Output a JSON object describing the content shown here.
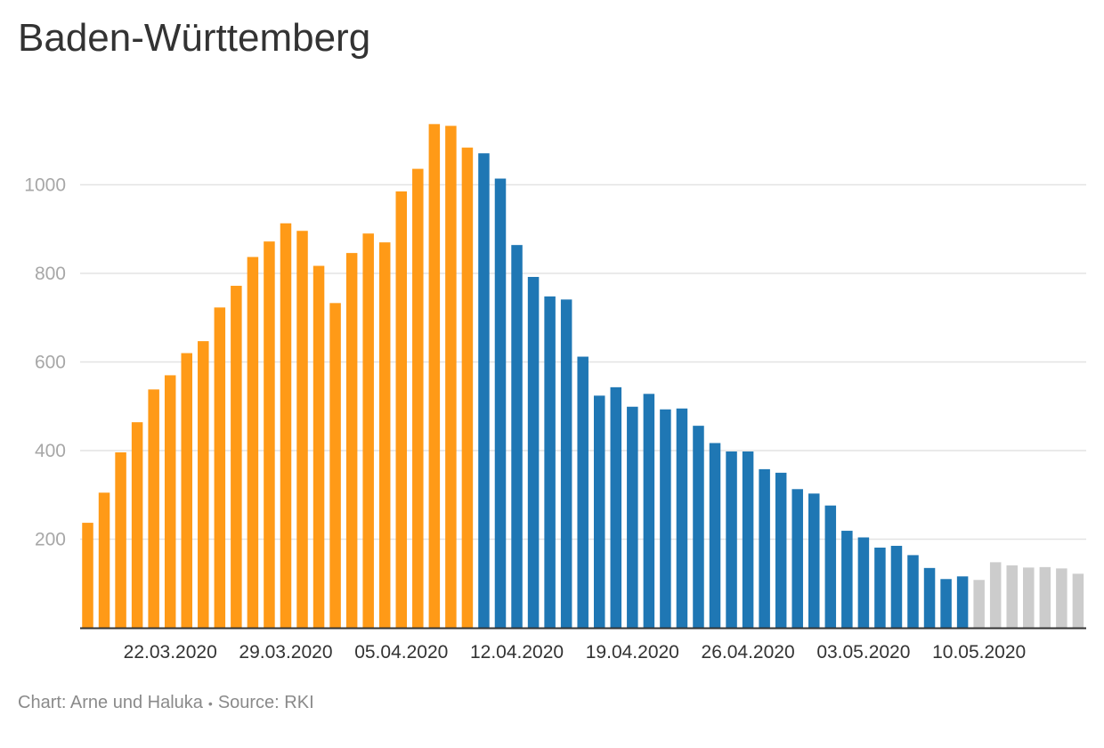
{
  "chart_data": {
    "type": "bar",
    "title": "Baden-Württemberg",
    "ylim": [
      0,
      1150
    ],
    "grid": true,
    "yticks": [
      200,
      400,
      600,
      800,
      1000
    ],
    "xtick_labels": [
      {
        "index": 5,
        "label": "22.03.2020"
      },
      {
        "index": 12,
        "label": "29.03.2020"
      },
      {
        "index": 19,
        "label": "05.04.2020"
      },
      {
        "index": 26,
        "label": "12.04.2020"
      },
      {
        "index": 33,
        "label": "19.04.2020"
      },
      {
        "index": 40,
        "label": "26.04.2020"
      },
      {
        "index": 47,
        "label": "03.05.2020"
      },
      {
        "index": 54,
        "label": "10.05.2020"
      }
    ],
    "series": [
      {
        "color": "#ff9a17",
        "start_index": 0,
        "values": [
          237,
          305,
          396,
          464,
          538,
          570,
          620,
          647,
          723,
          772,
          837,
          872,
          913,
          896,
          817,
          733,
          846,
          890,
          870,
          985,
          1036,
          1137,
          1133,
          1084
        ]
      },
      {
        "color": "#1f77b4",
        "start_index": 24,
        "values": [
          1071,
          1014,
          864,
          792,
          748,
          741,
          612,
          524,
          543,
          499,
          528,
          493,
          495,
          456,
          417,
          398,
          398,
          358,
          350,
          313,
          303,
          276,
          219,
          204,
          181,
          185,
          164,
          135,
          110,
          116
        ]
      },
      {
        "color": "#cccccc",
        "start_index": 54,
        "values": [
          108,
          148,
          141,
          136,
          137,
          134,
          122
        ]
      }
    ]
  },
  "footer": {
    "credit": "Chart: Arne und Haluka",
    "separator": "•",
    "source": "Source: RKI"
  }
}
